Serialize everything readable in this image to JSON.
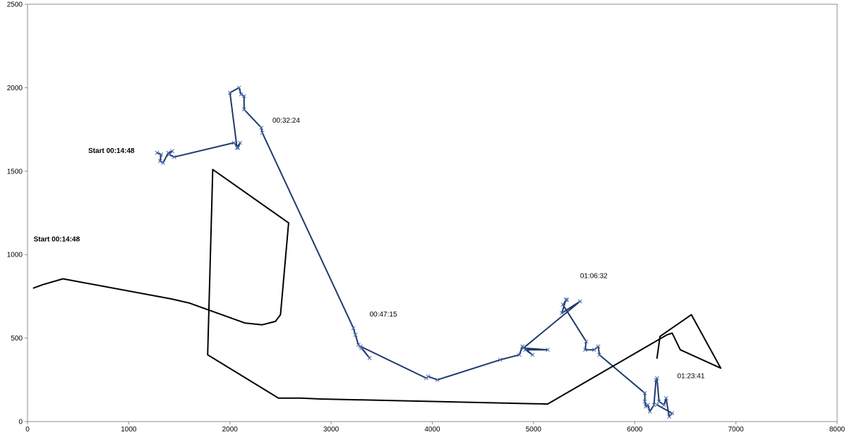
{
  "chart_data": {
    "type": "line",
    "title": "",
    "xlabel": "",
    "ylabel": "",
    "xlim": [
      0,
      8000
    ],
    "ylim": [
      0,
      2500
    ],
    "x_ticks": [
      0,
      1000,
      2000,
      3000,
      4000,
      5000,
      6000,
      7000,
      8000
    ],
    "y_ticks": [
      0,
      500,
      1000,
      1500,
      2000,
      2500
    ],
    "grid": false,
    "legend": "none",
    "series": [
      {
        "color": "#1f3a6b",
        "markers": "x",
        "points": [
          [
            1280,
            1610
          ],
          [
            1320,
            1600
          ],
          [
            1310,
            1560
          ],
          [
            1340,
            1550
          ],
          [
            1390,
            1610
          ],
          [
            1430,
            1620
          ],
          [
            1400,
            1600
          ],
          [
            1450,
            1585
          ],
          [
            2040,
            1670
          ],
          [
            2080,
            1640
          ],
          [
            2100,
            1670
          ],
          [
            2070,
            1640
          ],
          [
            2000,
            1970
          ],
          [
            2090,
            2000
          ],
          [
            2110,
            1960
          ],
          [
            2140,
            1950
          ],
          [
            2140,
            1870
          ],
          [
            2310,
            1760
          ],
          [
            2320,
            1730
          ],
          [
            3220,
            560
          ],
          [
            3240,
            520
          ],
          [
            3270,
            460
          ],
          [
            3300,
            440
          ],
          [
            3380,
            380
          ],
          [
            3290,
            450
          ],
          [
            3940,
            260
          ],
          [
            3960,
            270
          ],
          [
            4050,
            250
          ],
          [
            4670,
            370
          ],
          [
            4860,
            400
          ],
          [
            4890,
            450
          ],
          [
            4990,
            400
          ],
          [
            4920,
            430
          ],
          [
            5140,
            430
          ],
          [
            4900,
            440
          ],
          [
            5460,
            720
          ],
          [
            5280,
            650
          ],
          [
            5320,
            730
          ],
          [
            5330,
            730
          ],
          [
            5290,
            700
          ],
          [
            5520,
            480
          ],
          [
            5510,
            430
          ],
          [
            5600,
            430
          ],
          [
            5640,
            450
          ],
          [
            5650,
            400
          ],
          [
            6100,
            170
          ],
          [
            6100,
            120
          ],
          [
            6110,
            90
          ],
          [
            6130,
            100
          ],
          [
            6150,
            60
          ],
          [
            6190,
            100
          ],
          [
            6210,
            250
          ],
          [
            6220,
            260
          ],
          [
            6240,
            120
          ],
          [
            6290,
            100
          ],
          [
            6310,
            140
          ],
          [
            6340,
            30
          ],
          [
            6370,
            50
          ],
          [
            6220,
            100
          ]
        ]
      },
      {
        "color": "#000000",
        "markers": "none",
        "points": [
          [
            60,
            800
          ],
          [
            150,
            820
          ],
          [
            350,
            855
          ],
          [
            1420,
            735
          ],
          [
            1600,
            710
          ],
          [
            2150,
            590
          ],
          [
            2320,
            580
          ],
          [
            2450,
            600
          ],
          [
            2500,
            640
          ],
          [
            2580,
            1190
          ],
          [
            1830,
            1510
          ],
          [
            1780,
            400
          ],
          [
            2480,
            140
          ],
          [
            2700,
            140
          ],
          [
            2900,
            135
          ],
          [
            5140,
            105
          ],
          [
            6320,
            520
          ],
          [
            6370,
            530
          ],
          [
            6450,
            430
          ],
          [
            6850,
            320
          ],
          [
            6560,
            640
          ],
          [
            6250,
            510
          ],
          [
            6220,
            380
          ]
        ]
      }
    ],
    "annotations": [
      {
        "text": "Start 00:14:48",
        "x": 600,
        "y": 1610,
        "bold": true
      },
      {
        "text": "00:32:24",
        "x": 2420,
        "y": 1790,
        "bold": false
      },
      {
        "text": "Start 00:14:48",
        "x": 60,
        "y": 1080,
        "bold": true
      },
      {
        "text": "00:47:15",
        "x": 3380,
        "y": 630,
        "bold": false
      },
      {
        "text": "01:06:32",
        "x": 5460,
        "y": 860,
        "bold": false
      },
      {
        "text": "01:23:41",
        "x": 6420,
        "y": 260,
        "bold": false
      }
    ]
  }
}
